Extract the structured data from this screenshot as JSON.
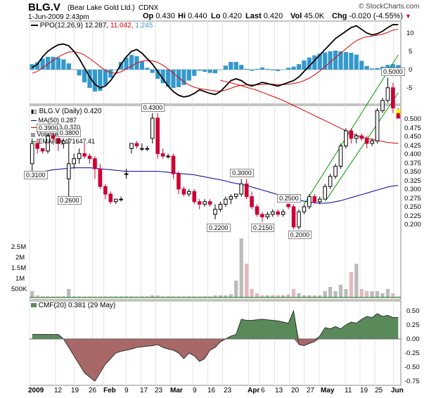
{
  "header": {
    "symbol": "BLG.V",
    "company": "(Bear Lake Gold Ltd.)",
    "exchange": "CDNX",
    "brand": "© StockCharts.com",
    "date": "1-Jun-2009 2:43pm",
    "open_label": "Op",
    "open": "0.430",
    "high_label": "Hi",
    "high": "0.440",
    "low_label": "Lo",
    "low": "0.420",
    "last_label": "Last",
    "last": "0.420",
    "vol_label": "Vol",
    "vol": "45.0K",
    "chg_label": "Chg",
    "chg": "-0.020 (-4.55%)",
    "chg_arrow": "▼"
  },
  "colors": {
    "up": "#000000",
    "down": "#cc0033",
    "ma50": "#000099",
    "ma200": "#dd0000",
    "ema60": "#006600",
    "channel": "#009900",
    "ppo_hist": "#3399cc",
    "ppo_line": "#000000",
    "ppo_signal": "#dd0000",
    "cmf_pos": "#5a8a5a",
    "cmf_neg": "#a86868",
    "volume": "#bbbbbb",
    "highlight": "#ffff00"
  },
  "chart_data": [
    {
      "type": "line",
      "panel": "ppo",
      "legend": {
        "label": "PPO(12,26,9)",
        "v1": "12.287,",
        "v2": "11.042,",
        "v3": "1.245"
      },
      "ylabels": [
        "10",
        "5",
        "0",
        "-5"
      ],
      "series": [
        {
          "name": "PPO",
          "values": [
            0.5,
            1.5,
            3.5,
            5.0,
            6.0,
            6.8,
            7.0,
            6.5,
            5.0,
            3.0,
            0.5,
            -2.0,
            -4.0,
            -5.0,
            -4.5,
            -3.0,
            -1.0,
            1.5,
            3.5,
            5.0,
            5.5,
            4.5,
            3.0,
            1.5,
            -0.5,
            -2.5,
            -4.5,
            -6.0,
            -7.0,
            -7.5,
            -7.2,
            -6.5,
            -5.5,
            -6.0,
            -6.5,
            -6.8,
            -6.0,
            -4.5,
            -3.0,
            -2.5,
            -3.0,
            -4.0,
            -4.5,
            -4.0,
            -3.5,
            -3.8,
            -4.2,
            -4.5,
            -4.0,
            -3.5,
            -3.0,
            -2.0,
            -0.5,
            1.0,
            2.5,
            4.0,
            5.5,
            7.0,
            8.5,
            9.5,
            10.5,
            11.5,
            12.0,
            11.0,
            10.0,
            9.5,
            9.8,
            10.5,
            11.5,
            12.3,
            12.29
          ]
        },
        {
          "name": "Signal",
          "values": [
            -1.0,
            -0.5,
            0.5,
            1.5,
            2.5,
            3.5,
            4.2,
            4.8,
            4.9,
            4.6,
            4.0,
            3.0,
            2.0,
            0.8,
            -0.2,
            -0.8,
            -1.0,
            -0.6,
            0.2,
            1.0,
            1.8,
            2.3,
            2.5,
            2.4,
            2.0,
            1.2,
            0.2,
            -1.0,
            -2.2,
            -3.3,
            -4.2,
            -4.8,
            -5.2,
            -5.4,
            -5.6,
            -5.8,
            -5.9,
            -5.6,
            -5.1,
            -4.6,
            -4.3,
            -4.2,
            -4.2,
            -4.2,
            -4.1,
            -4.0,
            -4.0,
            -4.1,
            -4.1,
            -4.0,
            -3.8,
            -3.5,
            -3.0,
            -2.3,
            -1.4,
            -0.4,
            0.8,
            2.0,
            3.3,
            4.5,
            5.7,
            6.9,
            7.9,
            8.6,
            9.0,
            9.2,
            9.4,
            9.7,
            10.2,
            10.8,
            11.04
          ]
        },
        {
          "name": "Histogram",
          "values": [
            1.5,
            2.0,
            3.0,
            3.5,
            3.5,
            3.3,
            2.8,
            1.7,
            0.1,
            -1.6,
            -3.5,
            -5.0,
            -6.0,
            -5.8,
            -4.3,
            -2.2,
            0.0,
            2.1,
            3.3,
            4.0,
            3.7,
            2.2,
            0.5,
            -0.9,
            -2.5,
            -3.7,
            -4.7,
            -5.0,
            -4.8,
            -4.2,
            -3.0,
            -1.7,
            -0.3,
            -0.6,
            -0.9,
            -1.0,
            -0.1,
            1.1,
            2.1,
            2.1,
            1.3,
            0.2,
            -0.3,
            0.2,
            0.6,
            0.2,
            -0.2,
            -0.4,
            0.1,
            0.5,
            0.8,
            1.5,
            2.5,
            3.3,
            3.9,
            4.4,
            4.7,
            5.0,
            5.2,
            5.0,
            4.8,
            4.6,
            4.1,
            2.4,
            1.0,
            0.3,
            0.4,
            0.8,
            1.3,
            1.5,
            1.25
          ]
        }
      ]
    },
    {
      "type": "candlestick",
      "panel": "price",
      "legend": {
        "title": "BLG.V (Daily) 0.420",
        "ma50": "MA(50) 0.287",
        "ma200": "MA(200) 0.370",
        "volume": "Volume 45,050",
        "ema60": "EMA(60) 171647.41"
      },
      "ylabels": [
        "0.500",
        "0.475",
        "0.450",
        "0.425",
        "0.400",
        "0.375",
        "0.350",
        "0.325",
        "0.300",
        "0.275",
        "0.250",
        "0.225",
        "0.200"
      ],
      "volume_ylabels": [
        "2.5M",
        "2M",
        "1.5M",
        "1M",
        "500K"
      ],
      "ylim": [
        0.19,
        0.51
      ],
      "annotations": [
        {
          "text": "0.3900",
          "i": 3,
          "y": 0.39
        },
        {
          "text": "0.3800",
          "i": 7,
          "y": 0.38
        },
        {
          "text": "0.3100",
          "i": 0,
          "y": 0.31
        },
        {
          "text": "0.2600",
          "i": 7,
          "y": 0.26
        },
        {
          "text": "0.4300",
          "i": 23,
          "y": 0.43
        },
        {
          "text": "0.3000",
          "i": 40,
          "y": 0.3
        },
        {
          "text": "0.2200",
          "i": 35,
          "y": 0.22
        },
        {
          "text": "0.2500",
          "i": 49,
          "y": 0.25
        },
        {
          "text": "0.2150",
          "i": 44,
          "y": 0.215
        },
        {
          "text": "0.2000",
          "i": 50,
          "y": 0.2
        },
        {
          "text": "0.5000",
          "i": 68,
          "y": 0.5
        }
      ],
      "candles": [
        [
          0.33,
          0.38,
          0.31,
          0.37
        ],
        [
          0.37,
          0.38,
          0.35,
          0.36
        ],
        [
          0.36,
          0.36,
          0.35,
          0.355
        ],
        [
          0.355,
          0.39,
          0.35,
          0.385
        ],
        [
          0.385,
          0.39,
          0.37,
          0.38
        ],
        [
          0.38,
          0.38,
          0.355,
          0.37
        ],
        [
          0.37,
          0.38,
          0.36,
          0.375
        ],
        [
          0.3,
          0.38,
          0.26,
          0.33
        ],
        [
          0.33,
          0.35,
          0.32,
          0.34
        ],
        [
          0.34,
          0.36,
          0.33,
          0.35
        ],
        [
          0.35,
          0.37,
          0.34,
          0.345
        ],
        [
          0.345,
          0.35,
          0.33,
          0.34
        ],
        [
          0.34,
          0.345,
          0.3,
          0.32
        ],
        [
          0.32,
          0.33,
          0.28,
          0.285
        ],
        [
          0.285,
          0.29,
          0.26,
          0.27
        ],
        [
          0.27,
          0.275,
          0.25,
          0.255
        ],
        [
          0.255,
          0.26,
          0.25,
          0.26
        ],
        [
          0.26,
          0.265,
          0.255,
          0.26
        ],
        [
          0.31,
          0.32,
          0.3,
          0.31
        ],
        [
          0.36,
          0.37,
          0.35,
          0.37
        ],
        [
          0.37,
          0.375,
          0.36,
          0.365
        ],
        [
          0.36,
          0.37,
          0.355,
          0.36
        ],
        [
          0.36,
          0.365,
          0.355,
          0.36
        ],
        [
          0.38,
          0.43,
          0.37,
          0.42
        ],
        [
          0.42,
          0.43,
          0.34,
          0.35
        ],
        [
          0.35,
          0.36,
          0.34,
          0.345
        ],
        [
          0.345,
          0.35,
          0.34,
          0.345
        ],
        [
          0.345,
          0.35,
          0.3,
          0.31
        ],
        [
          0.31,
          0.315,
          0.27,
          0.28
        ],
        [
          0.28,
          0.285,
          0.265,
          0.27
        ],
        [
          0.27,
          0.28,
          0.265,
          0.275
        ],
        [
          0.275,
          0.28,
          0.25,
          0.255
        ],
        [
          0.255,
          0.26,
          0.24,
          0.25
        ],
        [
          0.25,
          0.26,
          0.245,
          0.255
        ],
        [
          0.255,
          0.26,
          0.245,
          0.25
        ],
        [
          0.23,
          0.25,
          0.22,
          0.24
        ],
        [
          0.24,
          0.255,
          0.235,
          0.25
        ],
        [
          0.25,
          0.265,
          0.245,
          0.26
        ],
        [
          0.26,
          0.27,
          0.25,
          0.265
        ],
        [
          0.265,
          0.27,
          0.26,
          0.27
        ],
        [
          0.27,
          0.3,
          0.265,
          0.29
        ],
        [
          0.29,
          0.3,
          0.26,
          0.265
        ],
        [
          0.265,
          0.275,
          0.24,
          0.245
        ],
        [
          0.245,
          0.25,
          0.225,
          0.23
        ],
        [
          0.23,
          0.235,
          0.215,
          0.225
        ],
        [
          0.225,
          0.235,
          0.22,
          0.23
        ],
        [
          0.23,
          0.24,
          0.225,
          0.235
        ],
        [
          0.235,
          0.24,
          0.225,
          0.23
        ],
        [
          0.23,
          0.24,
          0.225,
          0.235
        ],
        [
          0.25,
          0.25,
          0.24,
          0.245
        ],
        [
          0.245,
          0.25,
          0.2,
          0.205
        ],
        [
          0.205,
          0.24,
          0.2,
          0.235
        ],
        [
          0.235,
          0.25,
          0.23,
          0.245
        ],
        [
          0.245,
          0.27,
          0.24,
          0.265
        ],
        [
          0.265,
          0.27,
          0.25,
          0.255
        ],
        [
          0.255,
          0.265,
          0.25,
          0.26
        ],
        [
          0.26,
          0.29,
          0.26,
          0.285
        ],
        [
          0.285,
          0.31,
          0.28,
          0.305
        ],
        [
          0.305,
          0.33,
          0.3,
          0.325
        ],
        [
          0.325,
          0.37,
          0.32,
          0.365
        ],
        [
          0.365,
          0.4,
          0.36,
          0.395
        ],
        [
          0.395,
          0.4,
          0.37,
          0.38
        ],
        [
          0.38,
          0.39,
          0.37,
          0.385
        ],
        [
          0.385,
          0.39,
          0.375,
          0.38
        ],
        [
          0.38,
          0.385,
          0.36,
          0.37
        ],
        [
          0.37,
          0.38,
          0.365,
          0.375
        ],
        [
          0.375,
          0.44,
          0.37,
          0.435
        ],
        [
          0.435,
          0.46,
          0.43,
          0.455
        ],
        [
          0.455,
          0.5,
          0.45,
          0.48
        ],
        [
          0.48,
          0.49,
          0.43,
          0.44
        ],
        [
          0.43,
          0.44,
          0.42,
          0.42
        ]
      ],
      "ma50": [
        0.31,
        0.312,
        0.314,
        0.316,
        0.318,
        0.319,
        0.32,
        0.321,
        0.322,
        0.322,
        0.322,
        0.322,
        0.321,
        0.32,
        0.319,
        0.318,
        0.317,
        0.316,
        0.315,
        0.315,
        0.315,
        0.315,
        0.315,
        0.315,
        0.315,
        0.314,
        0.313,
        0.312,
        0.311,
        0.31,
        0.309,
        0.308,
        0.306,
        0.304,
        0.302,
        0.3,
        0.298,
        0.296,
        0.293,
        0.291,
        0.289,
        0.287,
        0.284,
        0.281,
        0.278,
        0.275,
        0.272,
        0.269,
        0.266,
        0.263,
        0.26,
        0.258,
        0.256,
        0.254,
        0.253,
        0.252,
        0.252,
        0.253,
        0.255,
        0.257,
        0.26,
        0.263,
        0.266,
        0.269,
        0.272,
        0.275,
        0.278,
        0.281,
        0.284,
        0.286,
        0.287
      ],
      "ma200": [
        null,
        null,
        null,
        null,
        null,
        null,
        null,
        null,
        null,
        null,
        null,
        null,
        null,
        null,
        null,
        null,
        null,
        null,
        null,
        null,
        null,
        null,
        null,
        null,
        null,
        null,
        null,
        null,
        null,
        null,
        null,
        null,
        null,
        null,
        null,
        null,
        0.495,
        0.492,
        0.49,
        0.487,
        0.484,
        0.481,
        0.478,
        0.475,
        0.471,
        0.467,
        0.463,
        0.459,
        0.455,
        0.45,
        0.445,
        0.44,
        0.435,
        0.43,
        0.425,
        0.42,
        0.415,
        0.41,
        0.405,
        0.4,
        0.395,
        0.39,
        0.386,
        0.383,
        0.38,
        0.378,
        0.376,
        0.374,
        0.372,
        0.371,
        0.37
      ],
      "channels": [
        {
          "from": [
            52,
            0.25
          ],
          "to": [
            70,
            0.545
          ]
        },
        {
          "from": [
            56,
            0.255
          ],
          "to": [
            70,
            0.47
          ]
        }
      ],
      "volume": [
        0.3,
        0.1,
        0.05,
        0.05,
        0.05,
        0.05,
        0.05,
        0.4,
        0.05,
        0.05,
        0.05,
        0.05,
        0.05,
        0.05,
        0.05,
        0.05,
        0.05,
        0.05,
        0.05,
        0.05,
        0.05,
        0.05,
        0.05,
        0.1,
        0.1,
        0.05,
        0.05,
        0.05,
        0.05,
        0.05,
        0.05,
        0.05,
        0.05,
        0.05,
        0.05,
        0.1,
        0.1,
        0.1,
        0.15,
        0.8,
        2.8,
        1.6,
        0.4,
        0.2,
        0.1,
        0.1,
        0.1,
        0.1,
        0.1,
        0.15,
        0.4,
        0.2,
        0.1,
        0.1,
        0.1,
        0.1,
        0.3,
        0.5,
        0.3,
        0.6,
        0.4,
        1.2,
        1.6,
        0.4,
        0.3,
        0.3,
        0.3,
        0.2,
        0.4,
        0.2,
        0.045
      ]
    },
    {
      "type": "area",
      "panel": "cmf",
      "legend": {
        "label": "CMF(20) 0.381 (29 May)"
      },
      "ylabels": [
        "0.50",
        "0.25",
        "0.00",
        "-0.25",
        "-0.50",
        "-0.75"
      ],
      "values": [
        0.08,
        0.08,
        0.08,
        0.08,
        0.08,
        0.08,
        0.0,
        -0.15,
        -0.3,
        -0.45,
        -0.6,
        -0.68,
        -0.75,
        -0.6,
        -0.45,
        -0.35,
        -0.25,
        -0.22,
        -0.2,
        -0.18,
        -0.15,
        -0.14,
        -0.13,
        -0.12,
        -0.1,
        -0.15,
        -0.18,
        -0.2,
        -0.25,
        -0.35,
        -0.25,
        -0.3,
        -0.4,
        -0.35,
        -0.2,
        -0.15,
        -0.05,
        0.0,
        0.05,
        0.08,
        0.35,
        0.33,
        0.33,
        0.34,
        0.35,
        0.34,
        0.33,
        0.32,
        0.3,
        0.28,
        0.5,
        -0.1,
        -0.12,
        -0.08,
        -0.05,
        0.05,
        0.2,
        0.18,
        0.22,
        0.18,
        0.25,
        0.3,
        0.28,
        0.35,
        0.4,
        0.38,
        0.45,
        0.4,
        0.42,
        0.38,
        0.381
      ]
    }
  ],
  "xaxis": {
    "labels": [
      "2009",
      "12",
      "19",
      "26",
      "Feb",
      "9",
      "17",
      "23",
      "Mar",
      "9",
      "16",
      "23",
      "Apr",
      "6",
      "13",
      "20",
      "27",
      "May",
      "11",
      "19",
      "25",
      "Jun"
    ]
  }
}
